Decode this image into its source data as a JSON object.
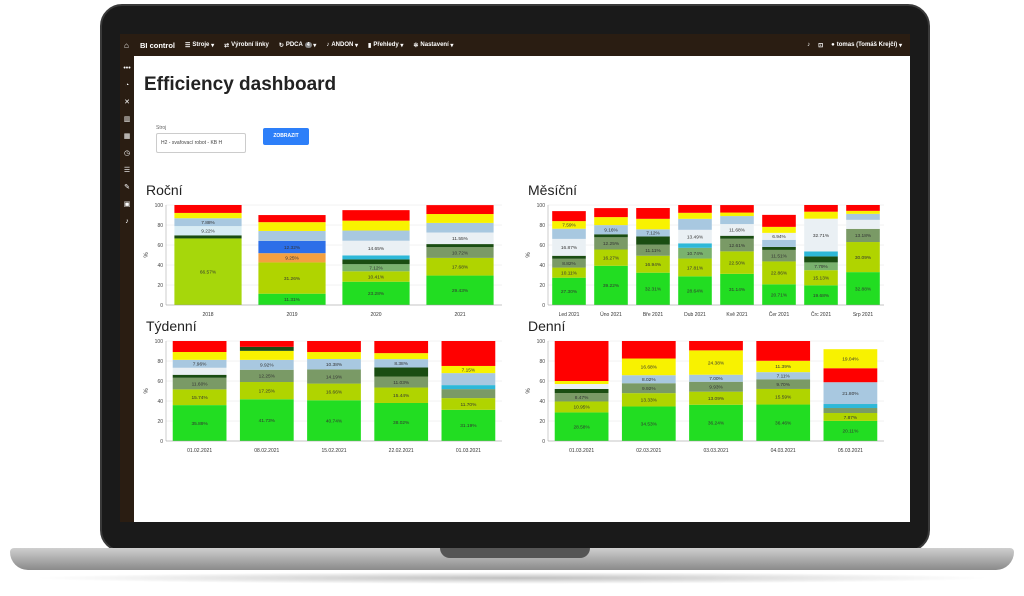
{
  "app": {
    "brand": "BI control"
  },
  "nav": {
    "items": [
      {
        "label": "Stroje",
        "icon": "list-icon",
        "caret": true
      },
      {
        "label": "Výrobní linky",
        "icon": "line-icon",
        "caret": false
      },
      {
        "label": "PDCA",
        "icon": "cycle-icon",
        "caret": true,
        "badge": "4"
      },
      {
        "label": "ANDON",
        "icon": "bell-icon",
        "caret": true
      },
      {
        "label": "Přehledy",
        "icon": "bars-icon",
        "caret": true
      },
      {
        "label": "Nastavení",
        "icon": "gear-icon",
        "caret": true
      }
    ],
    "user": "tomas (Tomáš Krejčí)"
  },
  "page": {
    "title": "Efficiency dashboard",
    "select_label": "Stroj",
    "select_value": "H2 - svařovací robot - KB H",
    "show_button": "ZOBRAZIT"
  },
  "chart_data": [
    {
      "title": "Roční",
      "type": "bar",
      "ylabel": "%",
      "ylim": [
        0,
        100
      ],
      "categories": [
        "2018",
        "2019",
        "2020",
        "2021"
      ],
      "bars": [
        [
          [
            "#a6d70b",
            66.57,
            "66.57%"
          ],
          [
            "#1a4d12",
            3.1,
            ""
          ],
          [
            "#d8ecf4",
            9.22,
            "9.22%"
          ],
          [
            "#a8c8e0",
            7.88,
            "7.88%"
          ],
          [
            "#f8f200",
            5.3,
            ""
          ],
          [
            "#ff0000",
            7.93,
            ""
          ]
        ],
        [
          [
            "#22dd22",
            11.31,
            "11.31%"
          ],
          [
            "#b0d400",
            31.26,
            "31.26%"
          ],
          [
            "#f4a040",
            9.25,
            "9.25%"
          ],
          [
            "#2d6fe8",
            12.32,
            "12.32%"
          ],
          [
            "#a8c8e0",
            9.9,
            ""
          ],
          [
            "#f8f200",
            8.8,
            ""
          ],
          [
            "#ff0000",
            7.1,
            ""
          ]
        ],
        [
          [
            "#22dd22",
            23.28,
            "23.28%"
          ],
          [
            "#b0d400",
            10.41,
            "10.41%"
          ],
          [
            "#7ab26e",
            7.12,
            "7.12%"
          ],
          [
            "#1a4d12",
            4.8,
            ""
          ],
          [
            "#2db8d8",
            4.0,
            ""
          ],
          [
            "#eaf0f4",
            14.65,
            "14.65%"
          ],
          [
            "#a8c8e0",
            10.2,
            ""
          ],
          [
            "#f8f200",
            9.9,
            ""
          ],
          [
            "#ff0000",
            10.5,
            ""
          ]
        ],
        [
          [
            "#22dd22",
            29.43,
            "29.43%"
          ],
          [
            "#b0d400",
            17.68,
            "17.68%"
          ],
          [
            "#7a9a66",
            10.72,
            "10.72%"
          ],
          [
            "#1a4d12",
            3.1,
            ""
          ],
          [
            "#eaf0f4",
            11.55,
            "11.55%"
          ],
          [
            "#a8c8e0",
            9.6,
            ""
          ],
          [
            "#f8f200",
            8.9,
            ""
          ],
          [
            "#ff0000",
            8.9,
            ""
          ]
        ]
      ]
    },
    {
      "title": "Měsíční",
      "type": "bar",
      "ylabel": "%",
      "ylim": [
        0,
        100
      ],
      "categories": [
        "Led 2021",
        "Úno 2021",
        "Bře 2021",
        "Dub 2021",
        "Kvě 2021",
        "Čer 2021",
        "Črc 2021",
        "Srp 2021"
      ],
      "bars": [
        [
          [
            "#22dd22",
            27.3,
            "27.30%"
          ],
          [
            "#b0d400",
            10.11,
            "10.11%"
          ],
          [
            "#7a9a66",
            8.82,
            "8.82%"
          ],
          [
            "#1a4d12",
            3.0,
            ""
          ],
          [
            "#eaf0f4",
            16.87,
            "16.87%"
          ],
          [
            "#a8c8e0",
            10.2,
            ""
          ],
          [
            "#f8f200",
            7.59,
            "7.59%"
          ],
          [
            "#ff0000",
            10.0,
            ""
          ]
        ],
        [
          [
            "#22dd22",
            39.22,
            "39.22%"
          ],
          [
            "#b0d400",
            16.27,
            "16.27%"
          ],
          [
            "#7a9a66",
            12.25,
            "12.25%"
          ],
          [
            "#1a4d12",
            3.0,
            ""
          ],
          [
            "#a8c8e0",
            9.16,
            "9.16%"
          ],
          [
            "#f8f200",
            8.0,
            ""
          ],
          [
            "#ff0000",
            9.0,
            ""
          ]
        ],
        [
          [
            "#22dd22",
            32.31,
            "32.31%"
          ],
          [
            "#b0d400",
            16.94,
            "16.94%"
          ],
          [
            "#7a9a66",
            11.11,
            "11.11%"
          ],
          [
            "#1a4d12",
            8.2,
            ""
          ],
          [
            "#a8c8e0",
            7.12,
            "7.12%"
          ],
          [
            "#f8f200",
            10.5,
            ""
          ],
          [
            "#ff0000",
            10.8,
            ""
          ]
        ],
        [
          [
            "#22dd22",
            28.64,
            "28.64%"
          ],
          [
            "#b0d400",
            17.81,
            "17.81%"
          ],
          [
            "#7ab26e",
            10.74,
            "10.74%"
          ],
          [
            "#2db8d8",
            4.5,
            ""
          ],
          [
            "#eaf0f4",
            13.49,
            "13.49%"
          ],
          [
            "#a8c8e0",
            11.0,
            ""
          ],
          [
            "#f8f200",
            6.0,
            ""
          ],
          [
            "#ff0000",
            7.8,
            ""
          ]
        ],
        [
          [
            "#22dd22",
            31.14,
            "31.14%"
          ],
          [
            "#b0d400",
            22.5,
            "22.50%"
          ],
          [
            "#7a9a66",
            12.61,
            "12.61%"
          ],
          [
            "#1a4d12",
            3.0,
            ""
          ],
          [
            "#eaf0f4",
            11.68,
            "11.68%"
          ],
          [
            "#a8c8e0",
            8.0,
            ""
          ],
          [
            "#f8f200",
            3.5,
            ""
          ],
          [
            "#ff0000",
            7.5,
            ""
          ]
        ],
        [
          [
            "#22dd22",
            20.71,
            "20.71%"
          ],
          [
            "#b0d400",
            22.86,
            "22.86%"
          ],
          [
            "#7a9a66",
            11.51,
            "11.51%"
          ],
          [
            "#1a4d12",
            3.0,
            ""
          ],
          [
            "#a8c8e0",
            7.11,
            ""
          ],
          [
            "#eaf0f4",
            6.94,
            "6.94%"
          ],
          [
            "#f8f200",
            6.0,
            ""
          ],
          [
            "#ff0000",
            12.0,
            ""
          ]
        ],
        [
          [
            "#22dd22",
            19.68,
            "19.68%"
          ],
          [
            "#b0d400",
            15.13,
            "15.13%"
          ],
          [
            "#7ab26e",
            7.79,
            "7.79%"
          ],
          [
            "#1a4d12",
            6.0,
            ""
          ],
          [
            "#2db8d8",
            5.0,
            ""
          ],
          [
            "#eaf0f4",
            32.71,
            "32.71%"
          ],
          [
            "#f8f200",
            7.0,
            ""
          ],
          [
            "#ff0000",
            6.7,
            ""
          ]
        ],
        [
          [
            "#22dd22",
            32.88,
            "32.88%"
          ],
          [
            "#b0d400",
            30.09,
            "30.09%"
          ],
          [
            "#7a9a66",
            13.18,
            "13.18%"
          ],
          [
            "#eaf0f4",
            9.0,
            ""
          ],
          [
            "#a8c8e0",
            6.0,
            ""
          ],
          [
            "#f8f200",
            3.0,
            ""
          ],
          [
            "#ff0000",
            5.85,
            ""
          ]
        ]
      ]
    },
    {
      "title": "Týdenní",
      "type": "bar",
      "ylabel": "%",
      "ylim": [
        0,
        100
      ],
      "categories": [
        "01.02.2021",
        "08.02.2021",
        "15.02.2021",
        "22.02.2021",
        "01.03.2021"
      ],
      "bars": [
        [
          [
            "#22dd22",
            35.89,
            "35.89%"
          ],
          [
            "#b0d400",
            15.74,
            "15.74%"
          ],
          [
            "#7a9a66",
            11.6,
            "11.60%"
          ],
          [
            "#1a4d12",
            3.0,
            ""
          ],
          [
            "#eaf0f4",
            7.0,
            ""
          ],
          [
            "#a8c8e0",
            7.96,
            "7.96%"
          ],
          [
            "#f8f200",
            7.8,
            ""
          ],
          [
            "#ff0000",
            11.0,
            ""
          ]
        ],
        [
          [
            "#22dd22",
            41.73,
            "41.73%"
          ],
          [
            "#b0d400",
            17.25,
            "17.25%"
          ],
          [
            "#7a9a66",
            12.25,
            "12.25%"
          ],
          [
            "#a8c8e0",
            9.92,
            "9.92%"
          ],
          [
            "#f8f200",
            9.0,
            ""
          ],
          [
            "#1a4d12",
            4.0,
            ""
          ],
          [
            "#ff0000",
            5.85,
            ""
          ]
        ],
        [
          [
            "#22dd22",
            40.74,
            "40.74%"
          ],
          [
            "#b0d400",
            16.66,
            "16.66%"
          ],
          [
            "#7a9a66",
            14.19,
            "14.19%"
          ],
          [
            "#a8c8e0",
            10.38,
            "10.38%"
          ],
          [
            "#f8f200",
            7.0,
            ""
          ],
          [
            "#ff0000",
            11.03,
            ""
          ]
        ],
        [
          [
            "#22dd22",
            38.02,
            "38.02%"
          ],
          [
            "#b0d400",
            15.44,
            "15.44%"
          ],
          [
            "#7a9a66",
            11.03,
            "11.03%"
          ],
          [
            "#1a4d12",
            9.0,
            ""
          ],
          [
            "#a8c8e0",
            8.38,
            "8.38%"
          ],
          [
            "#f8f200",
            6.0,
            ""
          ],
          [
            "#ff0000",
            12.13,
            ""
          ]
        ],
        [
          [
            "#22dd22",
            31.19,
            "31.19%"
          ],
          [
            "#b0d400",
            11.7,
            "11.70%"
          ],
          [
            "#7a9a66",
            9.0,
            ""
          ],
          [
            "#2db8d8",
            4.0,
            ""
          ],
          [
            "#a8c8e0",
            12.0,
            ""
          ],
          [
            "#f8f200",
            7.15,
            "7.15%"
          ],
          [
            "#ff0000",
            24.96,
            ""
          ]
        ]
      ]
    },
    {
      "title": "Denní",
      "type": "bar",
      "ylabel": "%",
      "ylim": [
        0,
        100
      ],
      "categories": [
        "01.03.2021",
        "02.03.2021",
        "03.03.2021",
        "04.03.2021",
        "05.03.2021"
      ],
      "bars": [
        [
          [
            "#22dd22",
            28.58,
            "28.58%"
          ],
          [
            "#b0d400",
            10.95,
            "10.95%"
          ],
          [
            "#7a9a66",
            8.47,
            "8.47%"
          ],
          [
            "#1a4d12",
            4.0,
            ""
          ],
          [
            "#eaf0f4",
            5.0,
            ""
          ],
          [
            "#f8f200",
            3.0,
            ""
          ],
          [
            "#ff0000",
            40.0,
            ""
          ]
        ],
        [
          [
            "#22dd22",
            34.53,
            "34.53%"
          ],
          [
            "#b0d400",
            13.33,
            "13.33%"
          ],
          [
            "#7a9a66",
            9.92,
            "9.92%"
          ],
          [
            "#a8c8e0",
            8.02,
            "8.02%"
          ],
          [
            "#f8f200",
            16.68,
            "16.68%"
          ],
          [
            "#ff0000",
            17.52,
            ""
          ]
        ],
        [
          [
            "#22dd22",
            36.24,
            "36.24%"
          ],
          [
            "#b0d400",
            13.09,
            "13.09%"
          ],
          [
            "#7a9a66",
            9.93,
            "9.93%"
          ],
          [
            "#a8c8e0",
            7.0,
            "7.00%"
          ],
          [
            "#f8f200",
            24.38,
            "24.38%"
          ],
          [
            "#ff0000",
            9.36,
            ""
          ]
        ],
        [
          [
            "#22dd22",
            36.46,
            "36.46%"
          ],
          [
            "#b0d400",
            15.59,
            "15.59%"
          ],
          [
            "#7a9a66",
            9.7,
            "9.70%"
          ],
          [
            "#a8c8e0",
            7.11,
            "7.11%"
          ],
          [
            "#f8f200",
            11.39,
            "11.39%"
          ],
          [
            "#ff0000",
            19.75,
            ""
          ]
        ],
        [
          [
            "#22dd22",
            20.11,
            "20.11%"
          ],
          [
            "#b0d400",
            7.87,
            "7.87%"
          ],
          [
            "#7a9a66",
            5.0,
            ""
          ],
          [
            "#2db8d8",
            4.0,
            ""
          ],
          [
            "#a8c8e0",
            21.8,
            "21.80%"
          ],
          [
            "#ff0000",
            14.0,
            ""
          ],
          [
            "#f8f200",
            19.04,
            "19.04%"
          ]
        ]
      ]
    }
  ]
}
